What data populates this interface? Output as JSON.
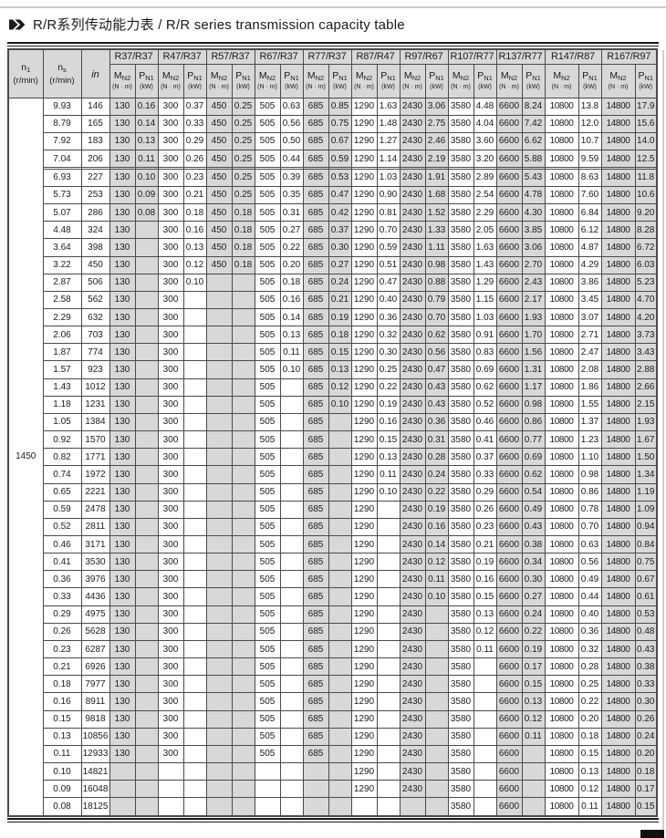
{
  "title": "R/R系列传动能力表 / R/R series transmission capacity table",
  "icon": "double-chevron-right",
  "colors": {
    "header_bg": "#d8d8d8",
    "stripe_bg": "#d8d8d8",
    "border": "#4a4a4a",
    "rule": "#1a1a1a"
  },
  "table": {
    "n1_value": "1450",
    "header": {
      "n1": {
        "sym": "n",
        "sub": "1",
        "unit": "(r/min)"
      },
      "ns": {
        "sym": "n",
        "sub": "s",
        "unit": "(r/min)"
      },
      "ratio": "in",
      "m": {
        "sym": "M",
        "sub": "N2",
        "unit": "(N · m)"
      },
      "p": {
        "sym": "P",
        "sub": "N1",
        "unit": "(kW)"
      }
    },
    "groups": [
      "R37/R37",
      "R47/R37",
      "R57/R37",
      "R67/R37",
      "R77/R37",
      "R87/R47",
      "R97/R67",
      "R107/R77",
      "R137/R77",
      "R147/R87",
      "R167/R97"
    ],
    "rows": [
      {
        "ns": "9.93",
        "i": "146",
        "c": [
          "130",
          "0.16",
          "300",
          "0.37",
          "450",
          "0.25",
          "505",
          "0.63",
          "685",
          "0.85",
          "1290",
          "1.63",
          "2430",
          "3.06",
          "3580",
          "4.48",
          "6600",
          "8.24",
          "10800",
          "13.8",
          "14800",
          "17.9"
        ]
      },
      {
        "ns": "8.79",
        "i": "165",
        "c": [
          "130",
          "0.14",
          "300",
          "0.33",
          "450",
          "0.25",
          "505",
          "0.56",
          "685",
          "0.75",
          "1290",
          "1.48",
          "2430",
          "2.75",
          "3580",
          "4.04",
          "6600",
          "7.42",
          "10800",
          "12.0",
          "14800",
          "15.6"
        ]
      },
      {
        "ns": "7.92",
        "i": "183",
        "c": [
          "130",
          "0.13",
          "300",
          "0.29",
          "450",
          "0.25",
          "505",
          "0.50",
          "685",
          "0.67",
          "1290",
          "1.27",
          "2430",
          "2.46",
          "3580",
          "3.60",
          "6600",
          "6.62",
          "10800",
          "10.7",
          "14800",
          "14.0"
        ]
      },
      {
        "ns": "7.04",
        "i": "206",
        "c": [
          "130",
          "0.11",
          "300",
          "0.26",
          "450",
          "0.25",
          "505",
          "0.44",
          "685",
          "0.59",
          "1290",
          "1.14",
          "2430",
          "2.19",
          "3580",
          "3.20",
          "6600",
          "5.88",
          "10800",
          "9.59",
          "14800",
          "12.5"
        ]
      },
      {
        "sep": true
      },
      {
        "ns": "6.93",
        "i": "227",
        "c": [
          "130",
          "0.10",
          "300",
          "0.23",
          "450",
          "0.25",
          "505",
          "0.39",
          "685",
          "0.53",
          "1290",
          "1.03",
          "2430",
          "1.91",
          "3580",
          "2.89",
          "6600",
          "5.43",
          "10800",
          "8.63",
          "14800",
          "11.8"
        ]
      },
      {
        "ns": "5.73",
        "i": "253",
        "c": [
          "130",
          "0.09",
          "300",
          "0.21",
          "450",
          "0.25",
          "505",
          "0.35",
          "685",
          "0.47",
          "1290",
          "0.90",
          "2430",
          "1.68",
          "3580",
          "2.54",
          "6600",
          "4.78",
          "10800",
          "7.60",
          "14800",
          "10.6"
        ]
      },
      {
        "ns": "5.07",
        "i": "286",
        "c": [
          "130",
          "0.08",
          "300",
          "0.18",
          "450",
          "0.18",
          "505",
          "0.31",
          "685",
          "0.42",
          "1290",
          "0.81",
          "2430",
          "1.52",
          "3580",
          "2.29",
          "6600",
          "4.30",
          "10800",
          "6.84",
          "14800",
          "9.20"
        ]
      },
      {
        "ns": "4.48",
        "i": "324",
        "c": [
          "130",
          "",
          "300",
          "0.16",
          "450",
          "0.18",
          "505",
          "0.27",
          "685",
          "0.37",
          "1290",
          "0.70",
          "2430",
          "1.33",
          "3580",
          "2.05",
          "6600",
          "3.85",
          "10800",
          "6.12",
          "14800",
          "8.28"
        ]
      },
      {
        "ns": "3.64",
        "i": "398",
        "c": [
          "130",
          "",
          "300",
          "0.13",
          "450",
          "0.18",
          "505",
          "0.22",
          "685",
          "0.30",
          "1290",
          "0.59",
          "2430",
          "1.11",
          "3580",
          "1.63",
          "6600",
          "3.06",
          "10800",
          "4.87",
          "14800",
          "6.72"
        ]
      },
      {
        "ns": "3.22",
        "i": "450",
        "c": [
          "130",
          "",
          "300",
          "0.12",
          "450",
          "0.18",
          "505",
          "0.20",
          "685",
          "0.27",
          "1290",
          "0.51",
          "2430",
          "0.98",
          "3580",
          "1.43",
          "6600",
          "2.70",
          "10800",
          "4.29",
          "14800",
          "6.03"
        ]
      },
      {
        "ns": "2.87",
        "i": "506",
        "c": [
          "130",
          "",
          "300",
          "0.10",
          "",
          "",
          "505",
          "0.18",
          "685",
          "0.24",
          "1290",
          "0.47",
          "2430",
          "0.88",
          "3580",
          "1.29",
          "6600",
          "2.43",
          "10800",
          "3.86",
          "14800",
          "5.23"
        ]
      },
      {
        "ns": "2.58",
        "i": "562",
        "c": [
          "130",
          "",
          "300",
          "",
          "",
          "",
          "505",
          "0.16",
          "685",
          "0.21",
          "1290",
          "0.40",
          "2430",
          "0.79",
          "3580",
          "1.15",
          "6600",
          "2.17",
          "10800",
          "3.45",
          "14800",
          "4.70"
        ]
      },
      {
        "ns": "2.29",
        "i": "632",
        "c": [
          "130",
          "",
          "300",
          "",
          "",
          "",
          "505",
          "0.14",
          "685",
          "0.19",
          "1290",
          "0.36",
          "2430",
          "0.70",
          "3580",
          "1.03",
          "6600",
          "1.93",
          "10800",
          "3.07",
          "14800",
          "4.20"
        ]
      },
      {
        "ns": "2.06",
        "i": "703",
        "c": [
          "130",
          "",
          "300",
          "",
          "",
          "",
          "505",
          "0.13",
          "685",
          "0.18",
          "1290",
          "0.32",
          "2430",
          "0.62",
          "3580",
          "0.91",
          "6600",
          "1.70",
          "10800",
          "2.71",
          "14800",
          "3.73"
        ]
      },
      {
        "ns": "1.87",
        "i": "774",
        "c": [
          "130",
          "",
          "300",
          "",
          "",
          "",
          "505",
          "0.11",
          "685",
          "0.15",
          "1290",
          "0.30",
          "2430",
          "0.56",
          "3580",
          "0.83",
          "6600",
          "1.56",
          "10800",
          "2.47",
          "14800",
          "3.43"
        ]
      },
      {
        "ns": "1.57",
        "i": "923",
        "c": [
          "130",
          "",
          "300",
          "",
          "",
          "",
          "505",
          "0.10",
          "685",
          "0.13",
          "1290",
          "0.25",
          "2430",
          "0.47",
          "3580",
          "0.69",
          "6600",
          "1.31",
          "10800",
          "2.08",
          "14800",
          "2.88"
        ]
      },
      {
        "ns": "1.43",
        "i": "1012",
        "c": [
          "130",
          "",
          "300",
          "",
          "",
          "",
          "505",
          "",
          "685",
          "0.12",
          "1290",
          "0.22",
          "2430",
          "0.43",
          "3580",
          "0.62",
          "6600",
          "1.17",
          "10800",
          "1.86",
          "14800",
          "2.66"
        ]
      },
      {
        "ns": "1.18",
        "i": "1231",
        "c": [
          "130",
          "",
          "300",
          "",
          "",
          "",
          "505",
          "",
          "685",
          "0.10",
          "1290",
          "0.19",
          "2430",
          "0.43",
          "3580",
          "0.52",
          "6600",
          "0.98",
          "10800",
          "1.55",
          "14800",
          "2.15"
        ]
      },
      {
        "ns": "1.05",
        "i": "1384",
        "c": [
          "130",
          "",
          "300",
          "",
          "",
          "",
          "505",
          "",
          "685",
          "",
          "1290",
          "0.16",
          "2430",
          "0.36",
          "3580",
          "0.46",
          "6600",
          "0.86",
          "10800",
          "1.37",
          "14800",
          "1.93"
        ]
      },
      {
        "ns": "0.92",
        "i": "1570",
        "c": [
          "130",
          "",
          "300",
          "",
          "",
          "",
          "505",
          "",
          "685",
          "",
          "1290",
          "0.15",
          "2430",
          "0.31",
          "3580",
          "0.41",
          "6600",
          "0.77",
          "10800",
          "1.23",
          "14800",
          "1.67"
        ]
      },
      {
        "ns": "0.82",
        "i": "1771",
        "c": [
          "130",
          "",
          "300",
          "",
          "",
          "",
          "505",
          "",
          "685",
          "",
          "1290",
          "0.13",
          "2430",
          "0.28",
          "3580",
          "0.37",
          "6600",
          "0.69",
          "10800",
          "1.10",
          "14800",
          "1.50"
        ]
      },
      {
        "ns": "0.74",
        "i": "1972",
        "c": [
          "130",
          "",
          "300",
          "",
          "",
          "",
          "505",
          "",
          "685",
          "",
          "1290",
          "0.11",
          "2430",
          "0.24",
          "3580",
          "0.33",
          "6600",
          "0.62",
          "10800",
          "0.98",
          "14800",
          "1.34"
        ]
      },
      {
        "ns": "0.65",
        "i": "2221",
        "c": [
          "130",
          "",
          "300",
          "",
          "",
          "",
          "505",
          "",
          "685",
          "",
          "1290",
          "0.10",
          "2430",
          "0.22",
          "3580",
          "0.29",
          "6600",
          "0.54",
          "10800",
          "0.86",
          "14800",
          "1.19"
        ]
      },
      {
        "ns": "0.59",
        "i": "2478",
        "c": [
          "130",
          "",
          "300",
          "",
          "",
          "",
          "505",
          "",
          "685",
          "",
          "1290",
          "",
          "2430",
          "0.19",
          "3580",
          "0.26",
          "6600",
          "0.49",
          "10800",
          "0.78",
          "14800",
          "1.09"
        ]
      },
      {
        "ns": "0.52",
        "i": "2811",
        "c": [
          "130",
          "",
          "300",
          "",
          "",
          "",
          "505",
          "",
          "685",
          "",
          "1290",
          "",
          "2430",
          "0.16",
          "3580",
          "0.23",
          "6600",
          "0.43",
          "10800",
          "0.70",
          "14800",
          "0.94"
        ]
      },
      {
        "ns": "0.46",
        "i": "3171",
        "c": [
          "130",
          "",
          "300",
          "",
          "",
          "",
          "505",
          "",
          "685",
          "",
          "1290",
          "",
          "2430",
          "0.14",
          "3580",
          "0.21",
          "6600",
          "0.38",
          "10800",
          "0.63",
          "14800",
          "0.84"
        ]
      },
      {
        "ns": "0.41",
        "i": "3530",
        "c": [
          "130",
          "",
          "300",
          "",
          "",
          "",
          "505",
          "",
          "685",
          "",
          "1290",
          "",
          "2430",
          "0.12",
          "3580",
          "0.19",
          "6600",
          "0.34",
          "10800",
          "0.56",
          "14800",
          "0.75"
        ]
      },
      {
        "ns": "0.36",
        "i": "3976",
        "c": [
          "130",
          "",
          "300",
          "",
          "",
          "",
          "505",
          "",
          "685",
          "",
          "1290",
          "",
          "2430",
          "0.11",
          "3580",
          "0.16",
          "6600",
          "0.30",
          "10800",
          "0.49",
          "14800",
          "0.67"
        ]
      },
      {
        "ns": "0.33",
        "i": "4436",
        "c": [
          "130",
          "",
          "300",
          "",
          "",
          "",
          "505",
          "",
          "685",
          "",
          "1290",
          "",
          "2430",
          "0.10",
          "3580",
          "0.15",
          "6600",
          "0.27",
          "10800",
          "0.44",
          "14800",
          "0.61"
        ]
      },
      {
        "ns": "0.29",
        "i": "4975",
        "c": [
          "130",
          "",
          "300",
          "",
          "",
          "",
          "505",
          "",
          "685",
          "",
          "1290",
          "",
          "2430",
          "",
          "3580",
          "0.13",
          "6600",
          "0.24",
          "10800",
          "0.40",
          "14800",
          "0.53"
        ]
      },
      {
        "ns": "0.26",
        "i": "5628",
        "c": [
          "130",
          "",
          "300",
          "",
          "",
          "",
          "505",
          "",
          "685",
          "",
          "1290",
          "",
          "2430",
          "",
          "3580",
          "0.12",
          "6600",
          "0.22",
          "10800",
          "0.36",
          "14800",
          "0.48"
        ]
      },
      {
        "ns": "0.23",
        "i": "6287",
        "c": [
          "130",
          "",
          "300",
          "",
          "",
          "",
          "505",
          "",
          "685",
          "",
          "1290",
          "",
          "2430",
          "",
          "3580",
          "0.11",
          "6600",
          "0.19",
          "10800",
          "0.32",
          "14800",
          "0.43"
        ]
      },
      {
        "ns": "0.21",
        "i": "6926",
        "c": [
          "130",
          "",
          "300",
          "",
          "",
          "",
          "505",
          "",
          "685",
          "",
          "1290",
          "",
          "2430",
          "",
          "3580",
          "",
          "6600",
          "0.17",
          "10800",
          "0.28",
          "14800",
          "0.38"
        ]
      },
      {
        "ns": "0.18",
        "i": "7977",
        "c": [
          "130",
          "",
          "300",
          "",
          "",
          "",
          "505",
          "",
          "685",
          "",
          "1290",
          "",
          "2430",
          "",
          "3580",
          "",
          "6600",
          "0.15",
          "10800",
          "0.25",
          "14800",
          "0.33"
        ]
      },
      {
        "ns": "0.16",
        "i": "8911",
        "c": [
          "130",
          "",
          "300",
          "",
          "",
          "",
          "505",
          "",
          "685",
          "",
          "1290",
          "",
          "2430",
          "",
          "3580",
          "",
          "6600",
          "0.13",
          "10800",
          "0.22",
          "14800",
          "0.30"
        ]
      },
      {
        "ns": "0.15",
        "i": "9818",
        "c": [
          "130",
          "",
          "300",
          "",
          "",
          "",
          "505",
          "",
          "685",
          "",
          "1290",
          "",
          "2430",
          "",
          "3580",
          "",
          "6600",
          "0.12",
          "10800",
          "0.20",
          "14800",
          "0.26"
        ]
      },
      {
        "ns": "0.13",
        "i": "10856",
        "c": [
          "130",
          "",
          "300",
          "",
          "",
          "",
          "505",
          "",
          "685",
          "",
          "1290",
          "",
          "2430",
          "",
          "3580",
          "",
          "6600",
          "0.11",
          "10800",
          "0.18",
          "14800",
          "0.24"
        ]
      },
      {
        "ns": "0.11",
        "i": "12933",
        "c": [
          "130",
          "",
          "300",
          "",
          "",
          "",
          "505",
          "",
          "685",
          "",
          "1290",
          "",
          "2430",
          "",
          "3580",
          "",
          "6600",
          "",
          "10800",
          "0.15",
          "14800",
          "0.20"
        ]
      },
      {
        "ns": "0.10",
        "i": "14821",
        "c": [
          "",
          "",
          "",
          "",
          "",
          "",
          "",
          "",
          "",
          "",
          "1290",
          "",
          "2430",
          "",
          "3580",
          "",
          "6600",
          "",
          "10800",
          "0.13",
          "14800",
          "0.18"
        ]
      },
      {
        "ns": "0.09",
        "i": "16048",
        "c": [
          "",
          "",
          "",
          "",
          "",
          "",
          "",
          "",
          "",
          "",
          "1290",
          "",
          "2430",
          "",
          "3580",
          "",
          "6600",
          "",
          "10800",
          "0.12",
          "14800",
          "0.17"
        ]
      },
      {
        "ns": "0.08",
        "i": "18125",
        "c": [
          "",
          "",
          "",
          "",
          "",
          "",
          "",
          "",
          "",
          "",
          "",
          "",
          "",
          "",
          "3580",
          "",
          "6600",
          "",
          "10800",
          "0.11",
          "14800",
          "0.15"
        ]
      }
    ]
  }
}
